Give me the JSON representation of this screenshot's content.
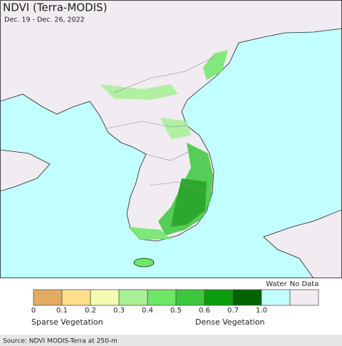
{
  "header": {
    "title": "NDVI (Terra-MODIS)",
    "subtitle": "Dec. 19 - Dec. 26, 2022"
  },
  "legend": {
    "colors": [
      "#e3aa62",
      "#fddf8c",
      "#f3fab2",
      "#a7f096",
      "#6ee767",
      "#3cc83d",
      "#0a9e0a",
      "#016401",
      "#c2ffff",
      "#f1ecf1"
    ],
    "ticks": [
      "0",
      "0.1",
      "0.2",
      "0.3",
      "0.4",
      "0.5",
      "0.6",
      "0.7",
      "1.0"
    ],
    "water_label": "Water",
    "nodata_label": "No Data",
    "sparse_label": "Sparse Vegetation",
    "dense_label": "Dense Vegetation"
  },
  "footer": {
    "source": "Source: NDVI MODIS-Terra at 250-m"
  }
}
